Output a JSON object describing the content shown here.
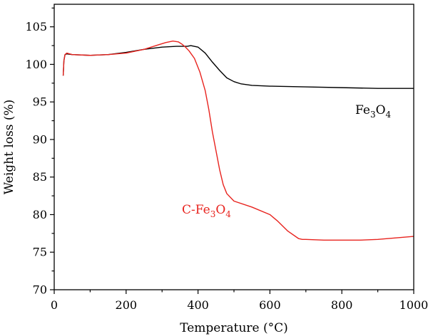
{
  "chart_data": {
    "type": "line",
    "title": "",
    "xlabel": "Temperature (°C)",
    "ylabel": "Weight loss (%)",
    "xlim": [
      0,
      1000
    ],
    "ylim": [
      70,
      108
    ],
    "x_ticks": [
      "0",
      "200",
      "400",
      "600",
      "800",
      "1000"
    ],
    "y_ticks": [
      "70",
      "75",
      "80",
      "85",
      "90",
      "95",
      "100",
      "105"
    ],
    "grid": false,
    "legend": "none",
    "series": [
      {
        "name": "Fe3O4",
        "label_parts": {
          "a": "Fe",
          "sub1": "3",
          "b": "O",
          "sub2": "4"
        },
        "color": "#000000",
        "x": [
          25,
          27,
          30,
          35,
          50,
          100,
          150,
          200,
          250,
          300,
          340,
          370,
          380,
          400,
          420,
          440,
          460,
          480,
          500,
          520,
          550,
          600,
          700,
          800,
          900,
          1000
        ],
        "y": [
          98.5,
          100.5,
          101.3,
          101.4,
          101.3,
          101.2,
          101.3,
          101.6,
          102.0,
          102.3,
          102.4,
          102.4,
          102.5,
          102.3,
          101.5,
          100.3,
          99.2,
          98.2,
          97.7,
          97.4,
          97.2,
          97.1,
          97.0,
          96.9,
          96.8,
          96.8
        ]
      },
      {
        "name": "C-Fe3O4",
        "label_parts": {
          "a": "C-Fe",
          "sub1": "3",
          "b": "O",
          "sub2": "4"
        },
        "color": "#e8231e",
        "x": [
          25,
          27,
          30,
          35,
          50,
          100,
          150,
          200,
          250,
          290,
          310,
          330,
          345,
          355,
          365,
          375,
          390,
          405,
          420,
          430,
          440,
          450,
          460,
          470,
          480,
          500,
          550,
          600,
          620,
          650,
          680,
          690,
          700,
          750,
          800,
          850,
          900,
          950,
          1000
        ],
        "y": [
          98.5,
          100.5,
          101.3,
          101.5,
          101.3,
          101.2,
          101.3,
          101.5,
          102.0,
          102.6,
          102.9,
          103.1,
          103.0,
          102.7,
          102.3,
          101.8,
          100.8,
          99.0,
          96.5,
          94.0,
          91.0,
          88.5,
          86.0,
          84.0,
          82.8,
          81.8,
          81.0,
          80.0,
          79.2,
          77.8,
          76.8,
          76.7,
          76.7,
          76.6,
          76.6,
          76.6,
          76.7,
          76.9,
          77.1
        ]
      }
    ]
  }
}
